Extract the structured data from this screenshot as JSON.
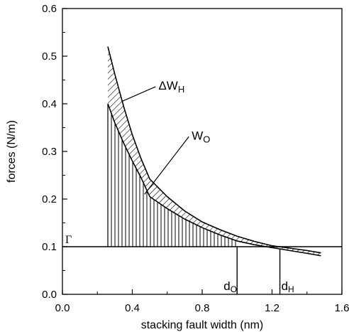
{
  "chart_data": {
    "type": "line",
    "xlabel": "stacking fault width (nm)",
    "ylabel": "forces (N/m)",
    "xlim": [
      0.0,
      1.6
    ],
    "ylim": [
      0.0,
      0.6
    ],
    "x_ticks": [
      {
        "value": 0.0,
        "label": "0.0"
      },
      {
        "value": 0.4,
        "label": "0.4"
      },
      {
        "value": 0.8,
        "label": "0.8"
      },
      {
        "value": 1.2,
        "label": "1.2"
      },
      {
        "value": 1.6,
        "label": "1.6"
      }
    ],
    "y_ticks": [
      {
        "value": 0.0,
        "label": "0.0"
      },
      {
        "value": 0.1,
        "label": "0.1"
      },
      {
        "value": 0.2,
        "label": "0.2"
      },
      {
        "value": 0.3,
        "label": "0.3"
      },
      {
        "value": 0.4,
        "label": "0.4"
      },
      {
        "value": 0.5,
        "label": "0.5"
      },
      {
        "value": 0.6,
        "label": "0.6"
      }
    ],
    "grid": false,
    "series": [
      {
        "name": "WO",
        "x": [
          0.26,
          0.3,
          0.35,
          0.4,
          0.45,
          0.5,
          0.6,
          0.7,
          0.8,
          0.9,
          1.0,
          1.1,
          1.2,
          1.3,
          1.4,
          1.48
        ],
        "y": [
          0.4,
          0.36,
          0.318,
          0.28,
          0.245,
          0.205,
          0.18,
          0.158,
          0.14,
          0.125,
          0.112,
          0.104,
          0.098,
          0.092,
          0.086,
          0.081
        ]
      },
      {
        "name": "WO + ΔWH",
        "x": [
          0.26,
          0.3,
          0.35,
          0.4,
          0.45,
          0.5,
          0.6,
          0.7,
          0.8,
          0.9,
          1.0,
          1.1,
          1.2,
          1.3,
          1.4,
          1.48
        ],
        "y": [
          0.52,
          0.462,
          0.395,
          0.335,
          0.285,
          0.242,
          0.205,
          0.175,
          0.152,
          0.136,
          0.122,
          0.111,
          0.102,
          0.097,
          0.092,
          0.087
        ]
      }
    ],
    "hline": {
      "y": 0.1,
      "label": "Γ",
      "color": "#000000"
    },
    "vlines": [
      {
        "x": 1.0,
        "label": "d",
        "sub": "O"
      },
      {
        "x": 1.245,
        "label": "d",
        "sub": "H"
      }
    ],
    "annotations": [
      {
        "text": "ΔW",
        "sub": "H",
        "x": 0.55,
        "y": 0.43,
        "arrow_to_x": 0.34,
        "arrow_to_y": 0.405
      },
      {
        "text": "W",
        "sub": "O",
        "x": 0.74,
        "y": 0.325,
        "arrow_to_x": 0.47,
        "arrow_to_y": 0.21
      }
    ],
    "fill_vertical_hatch": {
      "from_x": 0.26,
      "to_x": 1.0
    },
    "fill_diagonal_hatch": {
      "between": "WO and WO + ΔWH"
    }
  }
}
